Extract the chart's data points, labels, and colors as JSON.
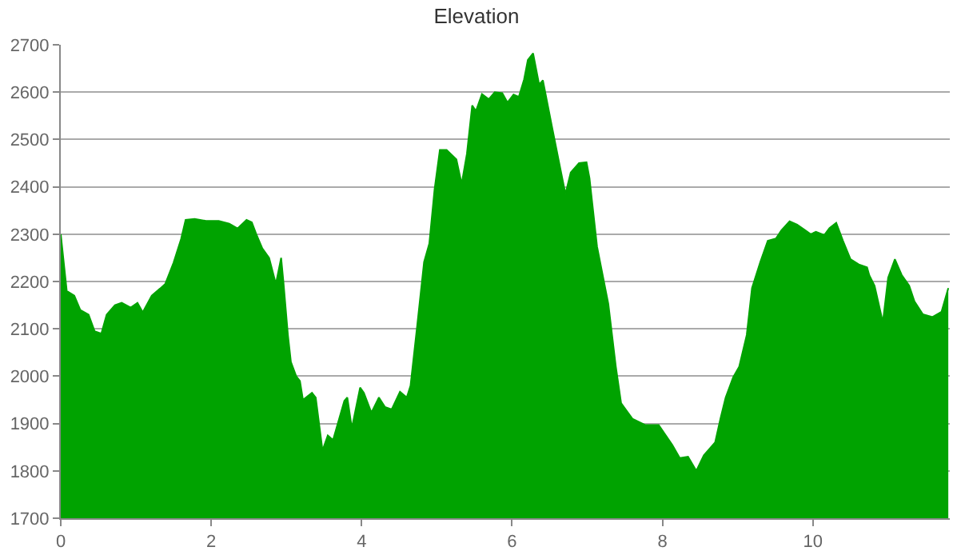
{
  "chart_data": {
    "type": "area",
    "title": "Elevation",
    "x": [
      0,
      0.08,
      0.18,
      0.26,
      0.37,
      0.45,
      0.54,
      0.61,
      0.72,
      0.81,
      0.93,
      1.02,
      1.09,
      1.21,
      1.32,
      1.39,
      1.5,
      1.6,
      1.66,
      1.78,
      1.93,
      2.1,
      2.24,
      2.35,
      2.47,
      2.54,
      2.6,
      2.68,
      2.77,
      2.86,
      2.93,
      2.96,
      3.02,
      3.06,
      3.13,
      3.18,
      3.22,
      3.34,
      3.39,
      3.48,
      3.55,
      3.62,
      3.77,
      3.81,
      3.87,
      3.98,
      4.03,
      4.13,
      4.23,
      4.31,
      4.4,
      4.51,
      4.6,
      4.65,
      4.74,
      4.83,
      4.9,
      4.97,
      5.04,
      5.13,
      5.26,
      5.33,
      5.4,
      5.47,
      5.52,
      5.6,
      5.69,
      5.77,
      5.87,
      5.94,
      6.02,
      6.09,
      6.16,
      6.21,
      6.28,
      6.36,
      6.41,
      6.53,
      6.64,
      6.71,
      6.78,
      6.89,
      6.99,
      7.03,
      7.13,
      7.28,
      7.38,
      7.45,
      7.6,
      7.77,
      7.95,
      8.13,
      8.23,
      8.34,
      8.45,
      8.55,
      8.7,
      8.77,
      8.84,
      8.94,
      9.02,
      9.12,
      9.19,
      9.3,
      9.4,
      9.51,
      9.58,
      9.69,
      9.79,
      9.9,
      9.97,
      10.04,
      10.15,
      10.22,
      10.31,
      10.4,
      10.5,
      10.61,
      10.72,
      10.75,
      10.82,
      10.93,
      11.0,
      11.09,
      11.18,
      11.28,
      11.35,
      11.46,
      11.59,
      11.71,
      11.8
    ],
    "series": [
      {
        "color": "#00a300",
        "values": [
          2300,
          2180,
          2170,
          2140,
          2130,
          2095,
          2090,
          2130,
          2150,
          2155,
          2145,
          2155,
          2135,
          2170,
          2185,
          2195,
          2240,
          2290,
          2330,
          2332,
          2328,
          2328,
          2322,
          2312,
          2330,
          2325,
          2300,
          2270,
          2250,
          2195,
          2250,
          2200,
          2087,
          2030,
          2000,
          1990,
          1950,
          1965,
          1955,
          1843,
          1875,
          1865,
          1948,
          1955,
          1890,
          1976,
          1965,
          1923,
          1955,
          1935,
          1930,
          1967,
          1955,
          1980,
          2108,
          2241,
          2280,
          2395,
          2478,
          2478,
          2458,
          2406,
          2470,
          2572,
          2560,
          2596,
          2585,
          2600,
          2598,
          2578,
          2595,
          2590,
          2627,
          2668,
          2682,
          2616,
          2625,
          2528,
          2440,
          2385,
          2430,
          2450,
          2452,
          2418,
          2274,
          2153,
          2020,
          1943,
          1910,
          1897,
          1897,
          1855,
          1827,
          1830,
          1800,
          1833,
          1860,
          1910,
          1955,
          1998,
          2020,
          2087,
          2186,
          2241,
          2286,
          2291,
          2308,
          2327,
          2320,
          2308,
          2300,
          2305,
          2298,
          2313,
          2324,
          2286,
          2247,
          2236,
          2230,
          2213,
          2191,
          2114,
          2208,
          2247,
          2214,
          2191,
          2158,
          2131,
          2125,
          2136,
          2186
        ]
      }
    ],
    "xlim": [
      0,
      11.82
    ],
    "xticks": [
      0,
      2,
      4,
      6,
      8,
      10
    ],
    "ylim": [
      1700,
      2700
    ],
    "yticks": [
      1700,
      1800,
      1900,
      2000,
      2100,
      2200,
      2300,
      2400,
      2500,
      2600,
      2700
    ],
    "grid": "y"
  }
}
